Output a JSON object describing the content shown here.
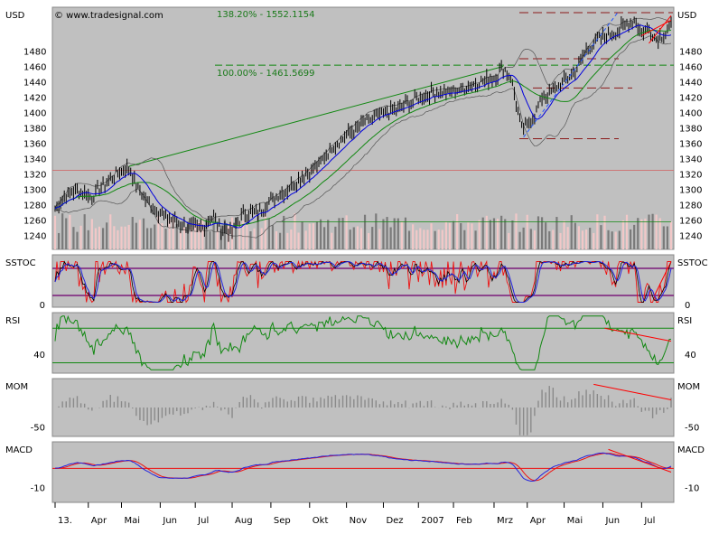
{
  "chart_data": {
    "type": "line",
    "watermark": "© www.tradesignal.com",
    "colors": {
      "panel_bg": "#c0c0c0",
      "price": "#000000",
      "ma_short": "#0000dd",
      "ma_long": "#118811",
      "bands": "#555555",
      "volume_dark": "#7a7a7a",
      "volume_light": "#f2c8c8",
      "fib_line": "#118811",
      "stop_line": "#8b1a1a",
      "trend_red": "#ff0000",
      "trend_blue": "#2255ff",
      "indicator_green": "#118811",
      "indicator_red": "#ee1111",
      "indicator_blue": "#2222dd",
      "level_purple": "#7a1a7a",
      "momentum_bar": "#8a8a8a"
    },
    "panels": [
      {
        "name": "USD",
        "right_label": "USD",
        "y_ticks": [
          1480,
          1460,
          1440,
          1420,
          1400,
          1380,
          1360,
          1340,
          1320,
          1300,
          1280,
          1260,
          1240
        ],
        "ylim": [
          1222,
          1537
        ],
        "annotations": [
          {
            "text": "138.20% - 1552.1154",
            "value": 1552.1154
          },
          {
            "text": "100.00% - 1461.5699",
            "value": 1461.5699
          }
        ]
      },
      {
        "name": "SSTOC",
        "right_label": "SSTOC",
        "y_ticks": [
          0
        ],
        "ylim": [
          -6,
          110
        ],
        "levels": [
          80,
          20
        ]
      },
      {
        "name": "RSI",
        "right_label": "RSI",
        "y_ticks": [
          40
        ],
        "ylim": [
          18,
          88
        ],
        "levels": [
          70,
          30
        ]
      },
      {
        "name": "MOM",
        "right_label": "MOM",
        "y_ticks": [
          -50
        ],
        "ylim": [
          -75,
          75
        ],
        "levels": []
      },
      {
        "name": "MACD",
        "right_label": "MACD",
        "y_ticks": [
          -10
        ],
        "ylim": [
          -18,
          14
        ],
        "levels": [
          0
        ]
      }
    ],
    "x_labels": [
      "13.",
      "Apr",
      "Mai",
      "Jun",
      "Jul",
      "Aug",
      "Sep",
      "Okt",
      "Nov",
      "Dez",
      "2007",
      "Feb",
      "Mrz",
      "Apr",
      "Mai",
      "Jun",
      "Jul"
    ],
    "price_anchors": [
      [
        0,
        1275
      ],
      [
        5,
        1292
      ],
      [
        12,
        1300
      ],
      [
        19,
        1290
      ],
      [
        26,
        1305
      ],
      [
        33,
        1320
      ],
      [
        40,
        1328
      ],
      [
        45,
        1300
      ],
      [
        50,
        1285
      ],
      [
        56,
        1270
      ],
      [
        62,
        1262
      ],
      [
        68,
        1255
      ],
      [
        74,
        1250
      ],
      [
        80,
        1250
      ],
      [
        86,
        1265
      ],
      [
        90,
        1250
      ],
      [
        96,
        1245
      ],
      [
        102,
        1268
      ],
      [
        110,
        1270
      ],
      [
        118,
        1288
      ],
      [
        126,
        1300
      ],
      [
        134,
        1318
      ],
      [
        142,
        1330
      ],
      [
        150,
        1355
      ],
      [
        158,
        1370
      ],
      [
        166,
        1385
      ],
      [
        174,
        1395
      ],
      [
        182,
        1402
      ],
      [
        190,
        1410
      ],
      [
        198,
        1420
      ],
      [
        206,
        1426
      ],
      [
        214,
        1425
      ],
      [
        222,
        1432
      ],
      [
        230,
        1440
      ],
      [
        238,
        1445
      ],
      [
        243,
        1458
      ],
      [
        247,
        1448
      ],
      [
        250,
        1412
      ],
      [
        253,
        1378
      ],
      [
        256,
        1385
      ],
      [
        260,
        1395
      ],
      [
        264,
        1420
      ],
      [
        270,
        1430
      ],
      [
        276,
        1440
      ],
      [
        282,
        1455
      ],
      [
        288,
        1480
      ],
      [
        296,
        1498
      ],
      [
        304,
        1505
      ],
      [
        310,
        1515
      ],
      [
        314,
        1520
      ],
      [
        318,
        1505
      ],
      [
        322,
        1510
      ],
      [
        326,
        1495
      ],
      [
        330,
        1502
      ],
      [
        334,
        1512
      ]
    ],
    "mom_trend_values": [
      60,
      20
    ],
    "macd_trend_values": [
      10,
      -2
    ],
    "rsi_trend_values": [
      70,
      55
    ]
  }
}
